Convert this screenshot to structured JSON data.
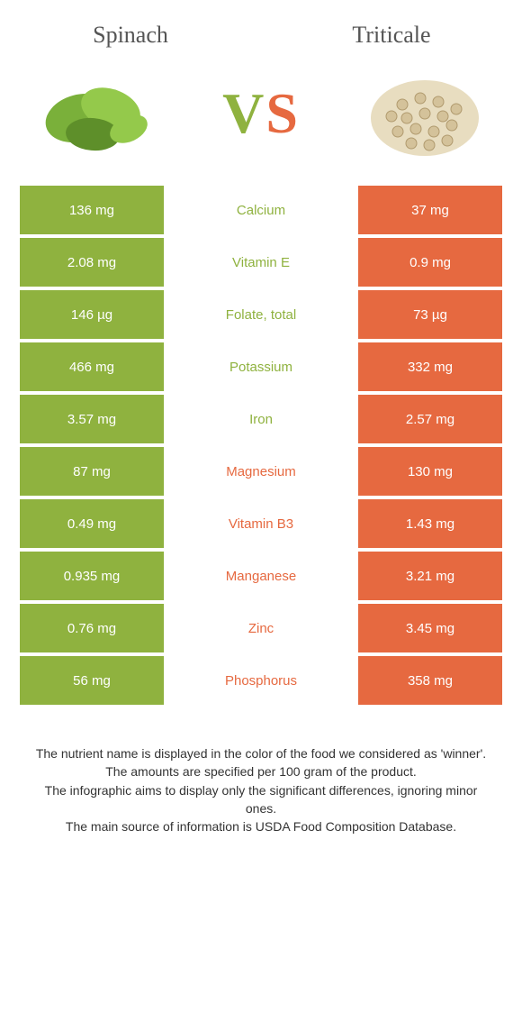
{
  "header": {
    "left": "Spinach",
    "right": "Triticale",
    "vs_v": "V",
    "vs_s": "S"
  },
  "colors": {
    "left": "#8fb23f",
    "right": "#e66940",
    "text": "#555555"
  },
  "rows": [
    {
      "left": "136 mg",
      "label": "Calcium",
      "right": "37 mg",
      "winner": "left"
    },
    {
      "left": "2.08 mg",
      "label": "Vitamin E",
      "right": "0.9 mg",
      "winner": "left"
    },
    {
      "left": "146 µg",
      "label": "Folate, total",
      "right": "73 µg",
      "winner": "left"
    },
    {
      "left": "466 mg",
      "label": "Potassium",
      "right": "332 mg",
      "winner": "left"
    },
    {
      "left": "3.57 mg",
      "label": "Iron",
      "right": "2.57 mg",
      "winner": "left"
    },
    {
      "left": "87 mg",
      "label": "Magnesium",
      "right": "130 mg",
      "winner": "right"
    },
    {
      "left": "0.49 mg",
      "label": "Vitamin B3",
      "right": "1.43 mg",
      "winner": "right"
    },
    {
      "left": "0.935 mg",
      "label": "Manganese",
      "right": "3.21 mg",
      "winner": "right"
    },
    {
      "left": "0.76 mg",
      "label": "Zinc",
      "right": "3.45 mg",
      "winner": "right"
    },
    {
      "left": "56 mg",
      "label": "Phosphorus",
      "right": "358 mg",
      "winner": "right"
    }
  ],
  "footer": {
    "line1": "The nutrient name is displayed in the color of the food we considered as 'winner'.",
    "line2": "The amounts are specified per 100 gram of the product.",
    "line3": "The infographic aims to display only the significant differences, ignoring minor ones.",
    "line4": "The main source of information is USDA Food Composition Database."
  }
}
